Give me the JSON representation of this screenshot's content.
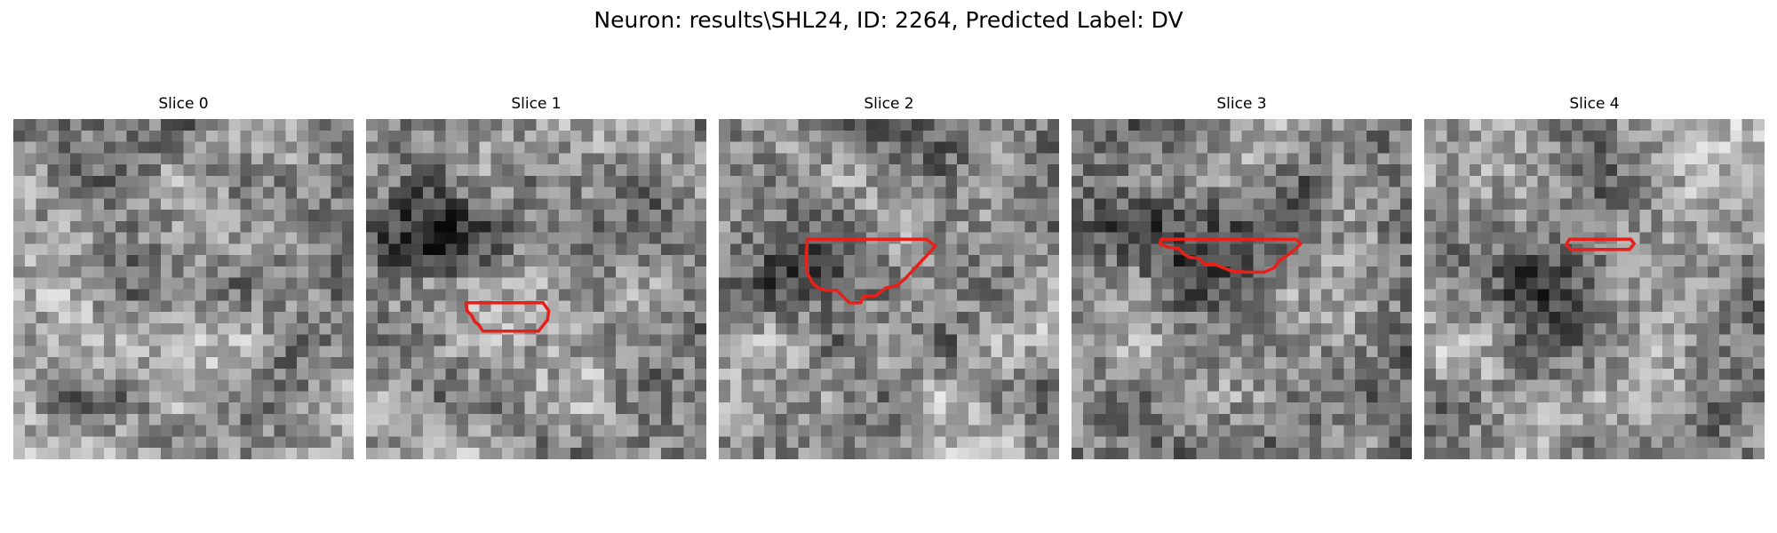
{
  "figure": {
    "title": "Neuron: results\\SHL24, ID: 2264, Predicted Label: DV"
  },
  "colors": {
    "background": "#ffffff",
    "contour": "#e8201a"
  },
  "slices": [
    {
      "label": "Slice 0",
      "seed": 11,
      "dark_center": null,
      "contour": null
    },
    {
      "label": "Slice 1",
      "seed": 23,
      "dark_center": [
        10,
        6
      ],
      "contour": "slice1"
    },
    {
      "label": "Slice 2",
      "seed": 37,
      "dark_center": [
        12,
        8
      ],
      "contour": "slice2"
    },
    {
      "label": "Slice 3",
      "seed": 53,
      "dark_center": [
        10,
        9
      ],
      "contour": "slice3"
    },
    {
      "label": "Slice 4",
      "seed": 71,
      "dark_center": [
        14,
        7
      ],
      "contour": "slice4"
    }
  ]
}
